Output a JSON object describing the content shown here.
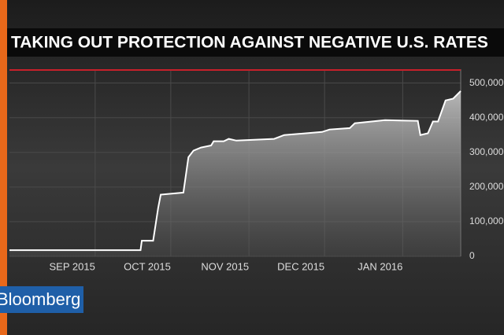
{
  "logo": "Bloomberg",
  "chart_data": {
    "type": "area",
    "title": "TAKING OUT PROTECTION AGAINST NEGATIVE U.S. RATES",
    "x": [
      -3,
      49,
      49.5,
      54,
      56,
      57,
      66,
      68,
      70,
      73,
      77,
      78,
      82,
      84,
      87,
      102,
      106,
      121,
      124,
      132,
      134,
      146,
      159,
      160,
      163,
      165,
      167,
      170,
      173,
      176
    ],
    "series": [
      {
        "color": "#ffffff",
        "values": [
          18000,
          18000,
          45000,
          45000,
          140000,
          178000,
          184000,
          286000,
          305000,
          314000,
          320000,
          332000,
          332000,
          339000,
          334000,
          339000,
          350000,
          359000,
          366000,
          370000,
          384000,
          393000,
          391000,
          350000,
          355000,
          389000,
          389000,
          450000,
          455000,
          477000
        ]
      }
    ],
    "xlim": [
      -3,
      176
    ],
    "xticks": [
      {
        "value": 31,
        "label": "SEP 2015"
      },
      {
        "value": 61,
        "label": "OCT 2015"
      },
      {
        "value": 92,
        "label": "NOV 2015"
      },
      {
        "value": 122,
        "label": "DEC 2015"
      },
      {
        "value": 153,
        "label": "JAN 2016"
      }
    ],
    "ylim": [
      0,
      540000
    ],
    "yticks": [
      0,
      {
        "value": 100000,
        "label": "100,000"
      },
      {
        "value": 200000,
        "label": "200,000"
      },
      {
        "value": 300000,
        "label": "300,000"
      },
      {
        "value": 400000,
        "label": "400,000"
      },
      {
        "value": 500000,
        "label": "500,000"
      }
    ],
    "grid": true
  }
}
